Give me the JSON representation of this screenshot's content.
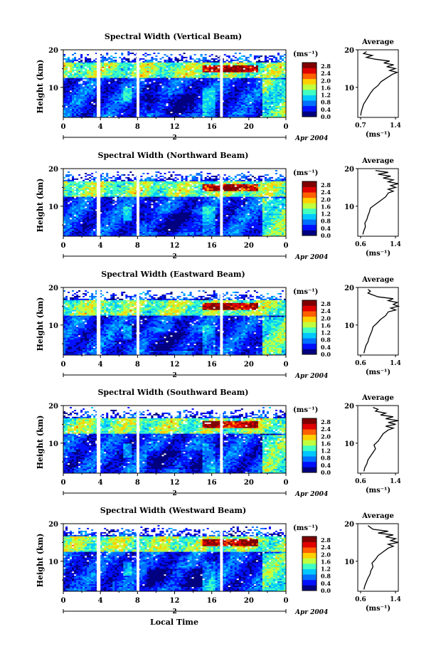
{
  "figure": {
    "date_label": "Apr 2004",
    "day_label": "2",
    "xlabel": "Local Time",
    "ylabel": "Height (km)",
    "unit_label": "(ms⁻¹)",
    "avg_title": "Average"
  },
  "colorbar": {
    "ticks": [
      "2.8",
      "2.4",
      "2.0",
      "1.6",
      "1.2",
      "0.8",
      "0.4",
      "0.0"
    ],
    "range": [
      0.0,
      3.0
    ],
    "colors": [
      "#000080",
      "#0010ff",
      "#0070ff",
      "#00c8ff",
      "#40ffc0",
      "#c0ff40",
      "#ffd000",
      "#ff6000",
      "#e00000",
      "#800000"
    ]
  },
  "chart_data": [
    {
      "type": "heatmap",
      "title": "Spectral Width (Vertical Beam)",
      "xlabel": "Local Time",
      "ylabel": "Height (km)",
      "x_ticks": [
        "0",
        "4",
        "8",
        "12",
        "16",
        "20",
        "0"
      ],
      "xlim": [
        0,
        24
      ],
      "y_ticks": [
        "10",
        "20"
      ],
      "ylim": [
        2,
        20
      ],
      "data_gaps_hours": [
        [
          3.6,
          4.0
        ],
        [
          7.9,
          8.2
        ],
        [
          16.9,
          17.2
        ]
      ],
      "average_profile": {
        "title": "Average",
        "x_ticks": [
          "0.7",
          "1.4"
        ],
        "xlim": [
          0.7,
          1.4
        ],
        "y_ticks": [
          "10",
          "20"
        ],
        "ylim": [
          2,
          20
        ],
        "height_km": [
          2.5,
          3.5,
          4.5,
          5.5,
          6.5,
          7.5,
          8.5,
          9.5,
          10.5,
          11.5,
          12.5,
          13.5,
          14.0,
          14.5,
          15.0,
          15.5,
          16.0,
          16.5,
          17.0,
          17.5,
          18.0,
          18.5,
          19.0,
          19.5
        ],
        "width_ms": [
          0.75,
          0.76,
          0.78,
          0.8,
          0.84,
          0.88,
          0.92,
          0.97,
          1.05,
          1.1,
          1.2,
          1.3,
          1.38,
          1.25,
          1.35,
          1.2,
          1.32,
          1.15,
          1.25,
          1.0,
          0.85,
          0.95,
          0.8,
          0.85
        ]
      }
    },
    {
      "type": "heatmap",
      "title": "Spectral Width (Northward Beam)",
      "xlabel": "Local Time",
      "ylabel": "Height (km)",
      "x_ticks": [
        "0",
        "4",
        "8",
        "12",
        "16",
        "20",
        "0"
      ],
      "xlim": [
        0,
        24
      ],
      "y_ticks": [
        "10",
        "20"
      ],
      "ylim": [
        2,
        20
      ],
      "data_gaps_hours": [
        [
          3.6,
          4.0
        ],
        [
          7.9,
          8.2
        ],
        [
          16.9,
          17.2
        ]
      ],
      "average_profile": {
        "title": "Average",
        "x_ticks": [
          "0.6",
          "1.4"
        ],
        "xlim": [
          0.6,
          1.4
        ],
        "y_ticks": [
          "10",
          "20"
        ],
        "ylim": [
          2,
          20
        ],
        "height_km": [
          2.5,
          3.5,
          4.5,
          5.5,
          6.5,
          7.5,
          8.5,
          9.5,
          10.5,
          11.5,
          12.5,
          13.5,
          14.0,
          14.5,
          15.0,
          15.5,
          16.0,
          16.5,
          17.0,
          17.5,
          18.0,
          18.5,
          19.0,
          19.5
        ],
        "width_ms": [
          0.7,
          0.72,
          0.75,
          0.74,
          0.78,
          0.8,
          0.83,
          0.85,
          0.95,
          1.05,
          1.15,
          1.2,
          1.3,
          1.2,
          1.35,
          1.25,
          1.4,
          1.2,
          1.3,
          1.1,
          1.25,
          1.0,
          1.2,
          0.95
        ]
      }
    },
    {
      "type": "heatmap",
      "title": "Spectral Width (Eastward Beam)",
      "xlabel": "Local Time",
      "ylabel": "Height (km)",
      "x_ticks": [
        "0",
        "4",
        "8",
        "12",
        "16",
        "20",
        "0"
      ],
      "xlim": [
        0,
        24
      ],
      "y_ticks": [
        "10",
        "20"
      ],
      "ylim": [
        2,
        20
      ],
      "data_gaps_hours": [
        [
          3.6,
          4.0
        ],
        [
          7.9,
          8.2
        ],
        [
          16.9,
          17.2
        ]
      ],
      "average_profile": {
        "title": "Average",
        "x_ticks": [
          "0.6",
          "1.4"
        ],
        "xlim": [
          0.6,
          1.4
        ],
        "y_ticks": [
          "10",
          "20"
        ],
        "ylim": [
          2,
          20
        ],
        "height_km": [
          2.5,
          3.5,
          4.5,
          5.5,
          6.5,
          7.5,
          8.5,
          9.5,
          10.5,
          11.5,
          12.5,
          13.5,
          14.0,
          14.5,
          15.0,
          15.5,
          16.0,
          16.5,
          17.0,
          17.5,
          18.0,
          18.5,
          19.0,
          19.5
        ],
        "width_ms": [
          0.72,
          0.74,
          0.76,
          0.8,
          0.82,
          0.85,
          0.88,
          0.9,
          0.98,
          1.05,
          1.15,
          1.2,
          1.35,
          1.25,
          1.4,
          1.3,
          1.38,
          1.2,
          1.3,
          1.0,
          0.9,
          0.8,
          0.85,
          0.8
        ]
      }
    },
    {
      "type": "heatmap",
      "title": "Spectral Width (Southward Beam)",
      "xlabel": "Local Time",
      "ylabel": "Height (km)",
      "x_ticks": [
        "0",
        "4",
        "8",
        "12",
        "16",
        "20",
        "0"
      ],
      "xlim": [
        0,
        24
      ],
      "y_ticks": [
        "10",
        "20"
      ],
      "ylim": [
        2,
        20
      ],
      "data_gaps_hours": [
        [
          3.6,
          4.0
        ],
        [
          7.9,
          8.2
        ],
        [
          16.9,
          17.2
        ]
      ],
      "average_profile": {
        "title": "Average",
        "x_ticks": [
          "0.6",
          "1.4"
        ],
        "xlim": [
          0.6,
          1.4
        ],
        "y_ticks": [
          "10",
          "20"
        ],
        "ylim": [
          2,
          20
        ],
        "height_km": [
          2.5,
          3.5,
          4.5,
          5.5,
          6.5,
          7.5,
          8.5,
          9.5,
          10.5,
          11.5,
          12.5,
          13.5,
          14.0,
          14.5,
          15.0,
          15.5,
          16.0,
          16.5,
          17.0,
          17.5,
          18.0,
          18.5,
          19.0,
          19.5
        ],
        "width_ms": [
          0.72,
          0.74,
          0.78,
          0.8,
          0.85,
          0.9,
          0.95,
          0.92,
          1.0,
          1.05,
          1.1,
          1.2,
          1.3,
          1.15,
          1.35,
          1.2,
          1.4,
          1.15,
          1.3,
          1.05,
          1.15,
          0.95,
          1.0,
          0.9
        ]
      }
    },
    {
      "type": "heatmap",
      "title": "Spectral Width (Westward Beam)",
      "xlabel": "Local Time",
      "ylabel": "Height (km)",
      "x_ticks": [
        "0",
        "4",
        "8",
        "12",
        "16",
        "20",
        "0"
      ],
      "xlim": [
        0,
        24
      ],
      "y_ticks": [
        "10",
        "20"
      ],
      "ylim": [
        2,
        20
      ],
      "data_gaps_hours": [
        [
          3.6,
          4.0
        ],
        [
          7.9,
          8.2
        ],
        [
          16.9,
          17.2
        ]
      ],
      "average_profile": {
        "title": "Average",
        "x_ticks": [
          "0.6",
          "1.4"
        ],
        "xlim": [
          0.6,
          1.4
        ],
        "y_ticks": [
          "10",
          "20"
        ],
        "ylim": [
          2,
          20
        ],
        "height_km": [
          2.5,
          3.5,
          4.5,
          5.5,
          6.5,
          7.5,
          8.5,
          9.5,
          10.5,
          11.5,
          12.5,
          13.5,
          14.0,
          14.5,
          15.0,
          15.5,
          16.0,
          16.5,
          17.0,
          17.5,
          18.0,
          18.5,
          19.0,
          19.5
        ],
        "width_ms": [
          0.72,
          0.74,
          0.77,
          0.8,
          0.84,
          0.86,
          0.9,
          0.88,
          0.95,
          1.0,
          1.1,
          1.2,
          1.3,
          1.2,
          1.4,
          1.25,
          1.35,
          1.15,
          1.3,
          1.0,
          1.2,
          0.9,
          0.85,
          0.8
        ]
      }
    }
  ]
}
